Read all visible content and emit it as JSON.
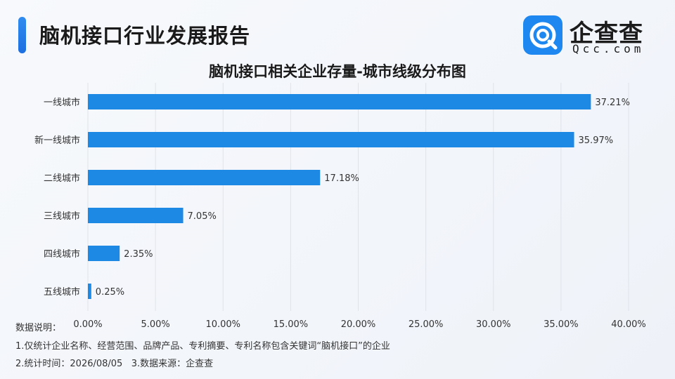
{
  "header": {
    "title": "脑机接口行业发展报告",
    "logo_text": "企查查",
    "logo_sub": "Qcc.com"
  },
  "chart_data": {
    "type": "bar",
    "orientation": "horizontal",
    "title": "脑机接口相关企业存量-城市线级分布图",
    "categories": [
      "一线城市",
      "新一线城市",
      "二线城市",
      "三线城市",
      "四线城市",
      "五线城市"
    ],
    "values": [
      37.21,
      35.97,
      17.18,
      7.05,
      2.35,
      0.25
    ],
    "value_labels": [
      "37.21%",
      "35.97%",
      "17.18%",
      "7.05%",
      "2.35%",
      "0.25%"
    ],
    "x_ticks": [
      "0.00%",
      "5.00%",
      "10.00%",
      "15.00%",
      "20.00%",
      "25.00%",
      "30.00%",
      "35.00%",
      "40.00%"
    ],
    "xlim": [
      0,
      40
    ],
    "grid": true,
    "bar_color": "#1e88e5",
    "grid_color": "#dfe3ea",
    "xlabel": "",
    "ylabel": ""
  },
  "footer": {
    "label": "数据说明：",
    "note1": "1.仅统计企业名称、经营范围、品牌产品、专利摘要、专利名称包含关键词“脑机接口”的企业",
    "note2": "2.统计时间：2026/08/05   3.数据来源：企查查"
  },
  "colors": {
    "accent": "#1e6fe0",
    "logo_bg": "#1e88f0"
  }
}
